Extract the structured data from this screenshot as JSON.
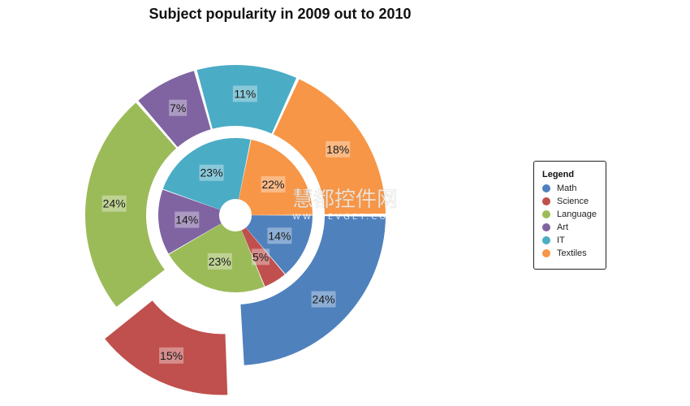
{
  "chart_data": {
    "type": "pie",
    "title": "Subject popularity in 2009 out to 2010",
    "categories": [
      "Math",
      "Science",
      "Language",
      "Art",
      "IT",
      "Textiles"
    ],
    "colors": {
      "Math": "#4f81bd",
      "Science": "#c0504d",
      "Language": "#9bbb59",
      "Art": "#8064a2",
      "IT": "#4bacc6",
      "Textiles": "#f79646"
    },
    "series": [
      {
        "ring": "inner",
        "values": [
          14,
          5,
          23,
          14,
          23,
          22
        ],
        "labels": [
          "14%",
          "5%",
          "23%",
          "14%",
          "23%",
          "22%"
        ]
      },
      {
        "ring": "outer",
        "values": [
          24,
          15,
          24,
          7,
          11,
          18
        ],
        "labels": [
          "24%",
          "15%",
          "24%",
          "7%",
          "11%",
          "18%"
        ],
        "exploded": [
          "Science"
        ]
      }
    ],
    "legend": {
      "title": "Legend",
      "position": "right"
    }
  },
  "watermark": {
    "text": "慧都控件网",
    "subtext": "WWW.EVGET.COM"
  }
}
